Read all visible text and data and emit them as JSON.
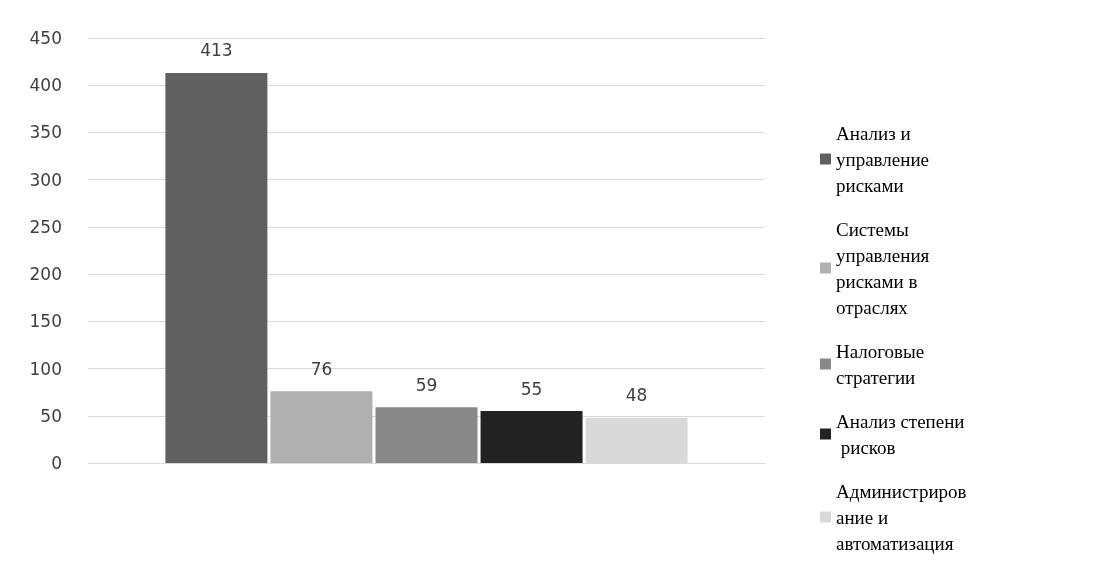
{
  "chart_data": {
    "type": "bar",
    "categories": [
      null
    ],
    "series": [
      {
        "name": "Анализ и управление рисками",
        "color": "#606060",
        "values": [
          413
        ]
      },
      {
        "name": "Системы управления рисками в отраслях",
        "color": "#b0b0b0",
        "values": [
          76
        ]
      },
      {
        "name": "Налоговые стратегии",
        "color": "#888888",
        "values": [
          59
        ]
      },
      {
        "name": "Анализ степени рисков",
        "color": "#222222",
        "values": [
          55
        ]
      },
      {
        "name": "Администрирование и автоматизация",
        "color": "#d9d9d9",
        "values": [
          48
        ]
      }
    ],
    "ylim": [
      0,
      450
    ],
    "yticks": [
      0,
      50,
      100,
      150,
      200,
      250,
      300,
      350,
      400,
      450
    ],
    "grid": "y",
    "legend": "right",
    "data_labels": true
  }
}
